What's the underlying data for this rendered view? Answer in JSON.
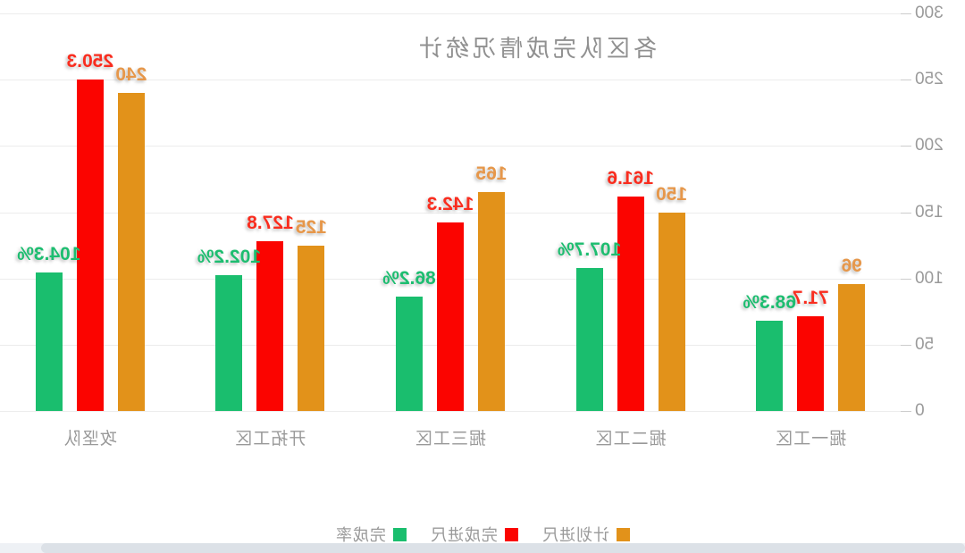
{
  "title": {
    "text": "各区队完成情况统计",
    "color": "#909090"
  },
  "legend": {
    "items": [
      {
        "key": "planned",
        "label": "计划进尺",
        "color": "#e2921a"
      },
      {
        "key": "actual",
        "label": "完成进尺",
        "color": "#fb0400"
      },
      {
        "key": "rate",
        "label": "完成率",
        "color": "#1abe6e"
      }
    ]
  },
  "chart_data": {
    "type": "bar",
    "title": "各区队完成情况统计",
    "orientation_note": "entire chart is rendered horizontally mirrored (flipped) in the screenshot",
    "categories": [
      "掘一工区",
      "掘二工区",
      "掘三工区",
      "开拓工区",
      "攻坚队"
    ],
    "series": [
      {
        "key": "planned",
        "name": "计划进尺",
        "color": "#e2921a",
        "label_color": "#e6974a",
        "values": [
          96,
          150,
          165,
          125,
          240
        ],
        "labels": [
          "96",
          "150",
          "165",
          "125",
          "240"
        ]
      },
      {
        "key": "actual",
        "name": "完成进尺",
        "color": "#fb0400",
        "label_color": "#f92d1f",
        "values": [
          71.7,
          161.6,
          142.3,
          127.8,
          250.3
        ],
        "labels": [
          "71.7",
          "161.6",
          "142.3",
          "127.8",
          "250.3"
        ]
      },
      {
        "key": "rate",
        "name": "完成率",
        "color": "#1abe6e",
        "label_color": "#1dbd70",
        "values": [
          68.3,
          107.7,
          86.2,
          102.2,
          104.3
        ],
        "labels": [
          "68.3%",
          "107.7%",
          "86.2%",
          "102.2%",
          "104.3%"
        ]
      }
    ],
    "ylim": [
      0,
      300
    ],
    "yticks": [
      0,
      50,
      100,
      150,
      200,
      250,
      300
    ],
    "ytick_labels": [
      "0",
      "50",
      "100",
      "150",
      "200",
      "250",
      "300"
    ],
    "grid": true,
    "legend_position": "bottom",
    "xlabel": "",
    "ylabel": ""
  },
  "scrollbar": {
    "present": true,
    "track_color": "#eef1f5",
    "thumb_color": "#dce1e7"
  }
}
